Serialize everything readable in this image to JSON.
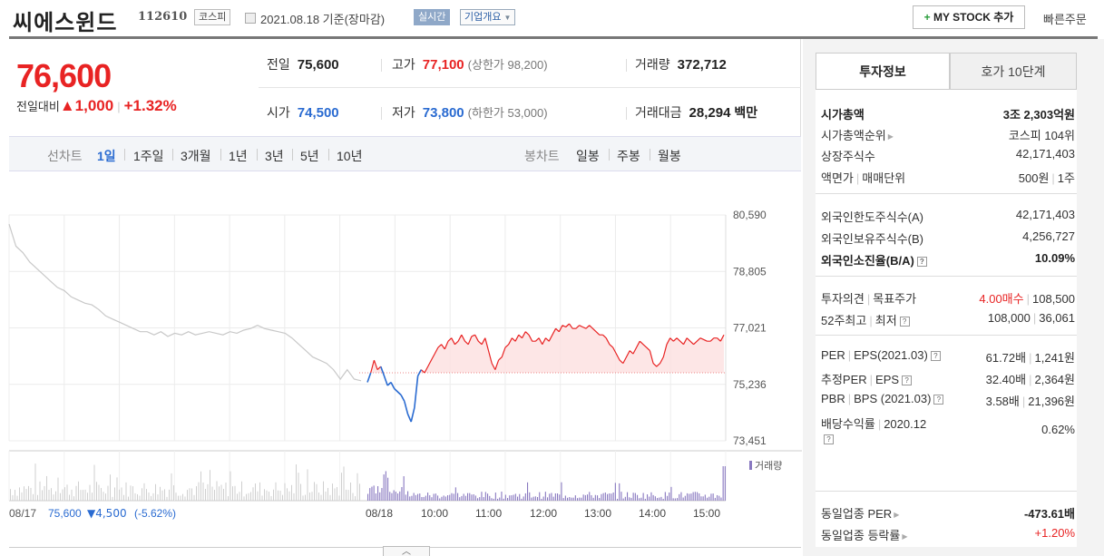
{
  "header": {
    "stock_name": "씨에스윈드",
    "stock_code": "112610",
    "market": "코스피",
    "date": "2021.08.18  기준(장마감)",
    "realtime_tag": "실시간",
    "company_overview": "기업개요",
    "mystock_label": "MY STOCK 추가",
    "quick_order": "빠른주문"
  },
  "price": {
    "current": "76,600",
    "change_label": "전일대비",
    "change_amount": "▲1,000",
    "change_sep": "|",
    "change_pct": "+1.32%",
    "prev_close_label": "전일",
    "prev_close": "75,600",
    "high_label": "고가",
    "high": "77,100",
    "upper_limit": "(상한가 98,200)",
    "volume_label": "거래량",
    "volume": "372,712",
    "open_label": "시가",
    "open": "74,500",
    "low_label": "저가",
    "low": "73,800",
    "lower_limit": "(하한가 53,000)",
    "amount_label": "거래대금",
    "amount": "28,294",
    "amount_unit": "백만"
  },
  "chart_tabs": {
    "line_head": "선차트",
    "periods": [
      "1일",
      "1주일",
      "3개월",
      "1년",
      "3년",
      "5년",
      "10년"
    ],
    "active": "1일",
    "candle_head": "봉차트",
    "candles": [
      "일봉",
      "주봉",
      "월봉"
    ]
  },
  "chart_data": {
    "type": "line",
    "y_ticks": [
      "80,590",
      "78,805",
      "77,021",
      "75,236",
      "73,451"
    ],
    "ylim": [
      73451,
      80590
    ],
    "baseline": 75600,
    "x_labels": [
      "08/18",
      "10:00",
      "11:00",
      "12:00",
      "13:00",
      "14:00",
      "15:00"
    ],
    "prev_day_label": "08/17",
    "prev_day_summary_price": "75,600",
    "prev_day_summary_change": "▼4,500",
    "prev_day_summary_pct": "(-5.62%)",
    "volume_legend": "거래량",
    "prev_day_series": [
      80300,
      79600,
      79400,
      79100,
      78900,
      78700,
      78500,
      78300,
      78200,
      78000,
      77900,
      77800,
      77750,
      77600,
      77400,
      77300,
      77200,
      77100,
      77000,
      76900,
      76900,
      76800,
      76900,
      76750,
      76850,
      76800,
      76900,
      76800,
      76850,
      76900,
      76850,
      76800,
      76900,
      76850,
      76950,
      77000,
      77100,
      77000,
      76950,
      76900,
      76850,
      76700,
      76500,
      76300,
      76100,
      76000,
      75900,
      75700,
      75400,
      75700,
      75400,
      75350
    ],
    "today_series": [
      75300,
      75600,
      76000,
      75700,
      75800,
      75500,
      75200,
      75300,
      75100,
      75000,
      74900,
      74700,
      74300,
      74050,
      74500,
      75500,
      75700,
      75600,
      75800,
      76000,
      76200,
      76400,
      76500,
      76350,
      76600,
      76700,
      76500,
      76600,
      76800,
      76600,
      76500,
      76750,
      76800,
      76600,
      76500,
      76700,
      76300,
      75900,
      75700,
      76000,
      76100,
      76400,
      76500,
      76700,
      76600,
      76800,
      76700,
      76900,
      76800,
      76600,
      76600,
      76700,
      76500,
      76700,
      76600,
      76800,
      77000,
      76900,
      77100,
      77050,
      77150,
      77000,
      77000,
      77100,
      77050,
      77000,
      77100,
      77000,
      76900,
      76800,
      76800,
      76700,
      76500,
      76400,
      76200,
      76000,
      75900,
      76100,
      76300,
      76200,
      76400,
      76600,
      76500,
      76400,
      76300,
      75900,
      75800,
      75900,
      76100,
      76500,
      76700,
      76600,
      76700,
      76600,
      76500,
      76700,
      76600,
      76500,
      76600,
      76700,
      76650,
      76600,
      76600,
      76700,
      76700,
      76600,
      76800
    ]
  },
  "right_panel": {
    "tabs": [
      "투자정보",
      "호가 10단계"
    ],
    "market_cap_label": "시가총액",
    "market_cap": "3조 2,303억원",
    "rank_label": "시가총액순위",
    "rank": "코스피 104위",
    "shares_label": "상장주식수",
    "shares": "42,171,403",
    "face_label": "액면가",
    "trade_unit_label": "매매단위",
    "face": "500원",
    "trade_unit": "1주",
    "foreign_limit_label": "외국인한도주식수(A)",
    "foreign_limit": "42,171,403",
    "foreign_hold_label": "외국인보유주식수(B)",
    "foreign_hold": "4,256,727",
    "foreign_ratio_label": "외국인소진율(B/A)",
    "foreign_ratio": "10.09%",
    "opinion_label": "투자의견",
    "target_label": "목표주가",
    "opinion": "4.00매수",
    "target": "108,500",
    "w52_label": "52주최고",
    "w52_low_label": "최저",
    "w52_high": "108,000",
    "w52_low": "36,061",
    "per_label": "PER",
    "eps_label": "EPS(2021.03)",
    "per": "61.72배",
    "eps": "1,241원",
    "est_per_label": "추정PER",
    "est_eps_label": "EPS",
    "est_per": "32.40배",
    "est_eps": "2,364원",
    "pbr_label": "PBR",
    "bps_label": "BPS (2021.03)",
    "pbr": "3.58배",
    "bps": "21,396원",
    "div_label": "배당수익률",
    "div_year": "2020.12",
    "div": "0.62%",
    "sector_per_label": "동일업종 PER",
    "sector_per": "-473.61배",
    "sector_change_label": "동일업종 등락률",
    "sector_change": "+1.20%"
  },
  "colors": {
    "up": "#e82323",
    "down": "#2a6bd1",
    "prev": "#c8c8c8",
    "volume": "#8878c0"
  }
}
